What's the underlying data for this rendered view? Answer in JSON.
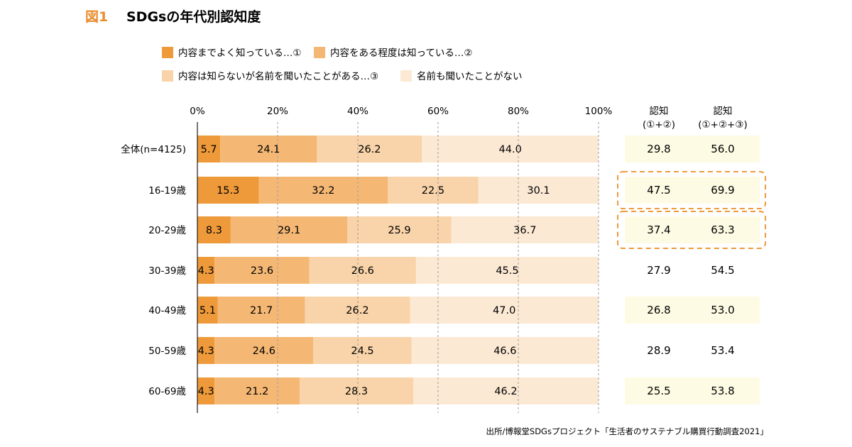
{
  "title": {
    "fig": "図1",
    "text": "SDGsの年代別認知度"
  },
  "colors": {
    "title_fig": "#EB8C2D",
    "series": [
      "#EE9A3A",
      "#F5B874",
      "#F9D3A9",
      "#FCE9D4"
    ],
    "summary_bg": "#FDFBE3",
    "highlight_border": "#EE9A3A",
    "grid": "#9C9C9C",
    "axis": "#231815"
  },
  "chart_data": {
    "type": "bar",
    "orientation": "horizontal",
    "stacked": true,
    "xlim": [
      0,
      100
    ],
    "xticks": [
      0,
      20,
      40,
      60,
      80,
      100
    ],
    "xtick_labels": [
      "0%",
      "20%",
      "40%",
      "60%",
      "80%",
      "100%"
    ],
    "categories": [
      "全体(n=4125)",
      "16-19歳",
      "20-29歳",
      "30-39歳",
      "40-49歳",
      "50-59歳",
      "60-69歳"
    ],
    "series": [
      {
        "name": "内容までよく知っている…①",
        "values": [
          5.7,
          15.3,
          8.3,
          4.3,
          5.1,
          4.3,
          4.3
        ]
      },
      {
        "name": "内容をある程度は知っている…②",
        "values": [
          24.1,
          32.2,
          29.1,
          23.6,
          21.7,
          24.6,
          21.2
        ]
      },
      {
        "name": "内容は知らないが名前を聞いたことがある…③",
        "values": [
          26.2,
          22.5,
          25.9,
          26.6,
          26.2,
          24.5,
          28.3
        ]
      },
      {
        "name": "名前も聞いたことがない",
        "values": [
          44.0,
          30.1,
          36.7,
          45.5,
          47.0,
          46.6,
          46.2
        ]
      }
    ],
    "value_labels": [
      [
        "5.7",
        "24.1",
        "26.2",
        "44.0"
      ],
      [
        "15.3",
        "32.2",
        "22.5",
        "30.1"
      ],
      [
        "8.3",
        "29.1",
        "25.9",
        "36.7"
      ],
      [
        "4.3",
        "23.6",
        "26.6",
        "45.5"
      ],
      [
        "5.1",
        "21.7",
        "26.2",
        "47.0"
      ],
      [
        "4.3",
        "24.6",
        "24.5",
        "46.6"
      ],
      [
        "4.3",
        "21.2",
        "28.3",
        "46.2"
      ]
    ],
    "summary": {
      "headers": [
        {
          "line1": "認知",
          "line2": "(①+②)"
        },
        {
          "line1": "認知",
          "line2": "(①+②+③)"
        }
      ],
      "col1": [
        "29.8",
        "47.5",
        "37.4",
        "27.9",
        "26.8",
        "28.9",
        "25.5"
      ],
      "col2": [
        "56.0",
        "69.9",
        "63.3",
        "54.5",
        "53.0",
        "53.4",
        "53.8"
      ],
      "shaded_rows": [
        0,
        1,
        2,
        4,
        6
      ],
      "highlighted_rows": [
        1,
        2
      ]
    },
    "legend_position": "top"
  },
  "source": "出所/博報堂SDGsプロジェクト「生活者のサステナブル購買行動調査2021」"
}
